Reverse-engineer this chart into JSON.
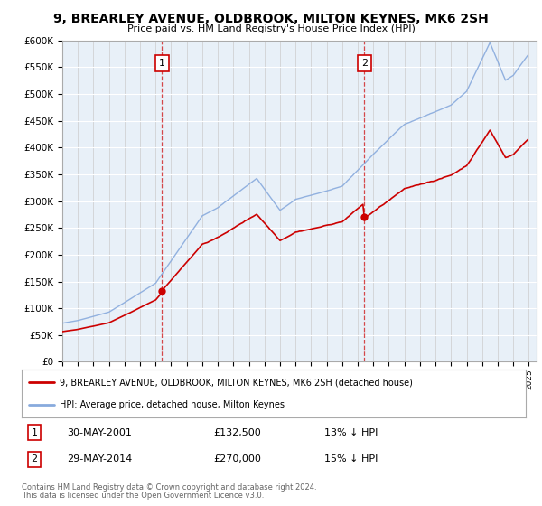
{
  "title": "9, BREARLEY AVENUE, OLDBROOK, MILTON KEYNES, MK6 2SH",
  "subtitle": "Price paid vs. HM Land Registry's House Price Index (HPI)",
  "sale1_price": 132500,
  "sale1_label": "1",
  "sale1_year": 2001.417,
  "sale2_price": 270000,
  "sale2_label": "2",
  "sale2_year": 2014.417,
  "legend_house": "9, BREARLEY AVENUE, OLDBROOK, MILTON KEYNES, MK6 2SH (detached house)",
  "legend_hpi": "HPI: Average price, detached house, Milton Keynes",
  "footnote1": "Contains HM Land Registry data © Crown copyright and database right 2024.",
  "footnote2": "This data is licensed under the Open Government Licence v3.0.",
  "house_color": "#cc0000",
  "hpi_color": "#88aadd",
  "bg_color": "#e8f0f8",
  "ylim_max": 600000,
  "xlim_min": 1995,
  "xlim_max": 2025
}
